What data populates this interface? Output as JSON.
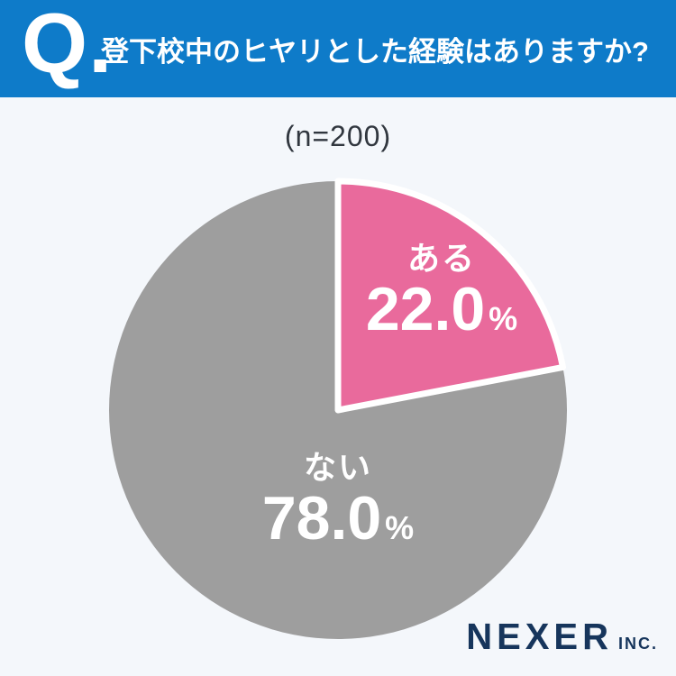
{
  "header": {
    "q_label": "Q.",
    "title": "登下校中のヒヤリとした経験はありますか?"
  },
  "chart_data": {
    "type": "pie",
    "title": "登下校中のヒヤリとした経験はありますか?",
    "sample_size_label": "(n=200)",
    "n": 200,
    "start_angle_deg": 0,
    "direction": "clockwise",
    "legend_position": "none",
    "slices": [
      {
        "label": "ある",
        "value": 22.0,
        "display": "22.0",
        "unit": "%",
        "color": "#e96a9c"
      },
      {
        "label": "ない",
        "value": 78.0,
        "display": "78.0",
        "unit": "%",
        "color": "#9e9e9e"
      }
    ]
  },
  "footer": {
    "brand": "NEXER",
    "brand_suffix": "INC."
  },
  "colors": {
    "header_bg": "#0e7bc9",
    "body_bg": "#f4f7fb",
    "accent_pink": "#e96a9c",
    "slice_gray": "#9e9e9e",
    "logo_navy": "#16355c",
    "text_dark": "#31373f",
    "label_white": "#ffffff"
  }
}
